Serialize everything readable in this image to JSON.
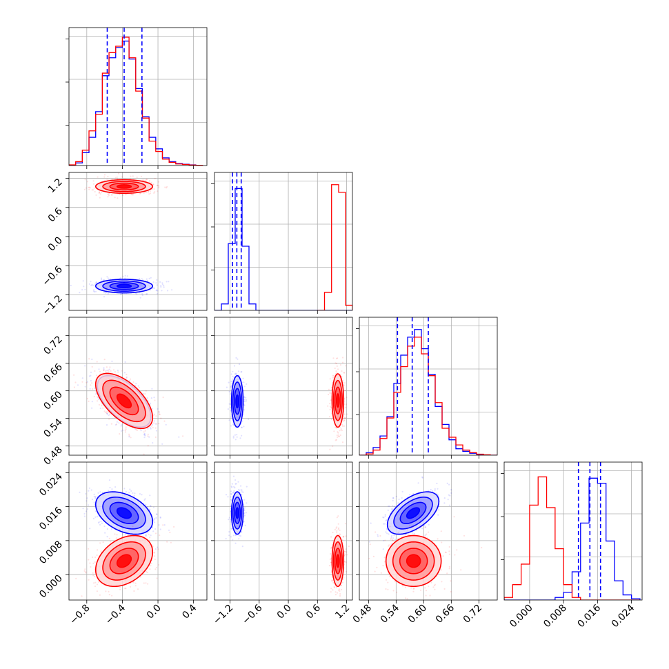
{
  "chart_data": {
    "type": "corner",
    "n_params": 4,
    "series": [
      {
        "name": "",
        "color": "#0000ff"
      },
      {
        "name": "",
        "color": "#ff0000"
      }
    ],
    "grid": true,
    "params": [
      {
        "range": [
          -1.0,
          0.55
        ],
        "ticks": [
          -0.8,
          -0.4,
          0.0,
          0.4
        ],
        "tick_labels": [
          "−0.8",
          "−0.4",
          "0.0",
          "0.4"
        ]
      },
      {
        "range": [
          -1.52,
          1.32
        ],
        "ticks": [
          -1.2,
          -0.6,
          0.0,
          0.6,
          1.2
        ],
        "tick_labels": [
          "−1.2",
          "−0.6",
          "0.0",
          "0.6",
          "1.2"
        ]
      },
      {
        "range": [
          0.46,
          0.76
        ],
        "ticks": [
          0.48,
          0.54,
          0.6,
          0.66,
          0.72
        ],
        "tick_labels": [
          "0.48",
          "0.54",
          "0.60",
          "0.66",
          "0.72"
        ]
      },
      {
        "range": [
          -0.006,
          0.0265
        ],
        "ticks": [
          0.0,
          0.008,
          0.016,
          0.024
        ],
        "tick_labels": [
          "0.000",
          "0.008",
          "0.016",
          "0.024"
        ]
      }
    ],
    "quantile_lines": [
      [
        -0.57,
        -0.38,
        -0.18
      ],
      [
        -1.15,
        -1.06,
        -0.97
      ],
      [
        0.543,
        0.575,
        0.61
      ],
      [
        0.0115,
        0.0142,
        0.0167
      ]
    ],
    "hist_1d": [
      {
        "bins": [
          -1.0,
          -0.925,
          -0.85,
          -0.775,
          -0.7,
          -0.625,
          -0.55,
          -0.475,
          -0.4,
          -0.325,
          -0.25,
          -0.175,
          -0.1,
          -0.025,
          0.05,
          0.125,
          0.2,
          0.275,
          0.35,
          0.425,
          0.5
        ],
        "blue": [
          0.002,
          0.02,
          0.1,
          0.22,
          0.42,
          0.7,
          0.84,
          0.92,
          0.97,
          0.83,
          0.6,
          0.38,
          0.22,
          0.13,
          0.06,
          0.03,
          0.015,
          0.01,
          0.005,
          0.002
        ],
        "red": [
          0.005,
          0.03,
          0.12,
          0.27,
          0.4,
          0.72,
          0.88,
          0.93,
          1.0,
          0.84,
          0.58,
          0.37,
          0.19,
          0.11,
          0.05,
          0.025,
          0.012,
          0.008,
          0.004,
          0.002
        ]
      },
      {
        "bins": [
          -1.52,
          -1.378,
          -1.236,
          -1.094,
          -0.952,
          -0.81,
          -0.668,
          -0.526,
          -0.384,
          -0.242,
          -0.1,
          0.042,
          0.184,
          0.326,
          0.468,
          0.61,
          0.752,
          0.894,
          1.036,
          1.178,
          1.32
        ],
        "blue": [
          0.0,
          0.05,
          0.52,
          0.95,
          0.5,
          0.05,
          0.0,
          0.0,
          0.0,
          0.0,
          0.0,
          0.0,
          0.0,
          0.0,
          0.0,
          0.0,
          0.0,
          0.0,
          0.0,
          0.0
        ],
        "red": [
          0.0,
          0.0,
          0.0,
          0.0,
          0.0,
          0.0,
          0.0,
          0.0,
          0.0,
          0.0,
          0.0,
          0.0,
          0.0,
          0.0,
          0.0,
          0.0,
          0.0,
          0.0,
          0.0,
          0.0
        ],
        "red_tail": {
          "bins": [
            0.6,
            0.745,
            0.89,
            1.036,
            1.178,
            1.32
          ],
          "values": [
            0.0,
            0.14,
            0.98,
            0.92,
            0.04
          ]
        }
      },
      {
        "bins": [
          0.46,
          0.475,
          0.49,
          0.505,
          0.52,
          0.535,
          0.55,
          0.565,
          0.58,
          0.595,
          0.61,
          0.625,
          0.64,
          0.655,
          0.67,
          0.685,
          0.7,
          0.715,
          0.73,
          0.745,
          0.76
        ],
        "blue": [
          0.0,
          0.02,
          0.06,
          0.15,
          0.3,
          0.56,
          0.78,
          0.92,
          0.98,
          0.83,
          0.63,
          0.38,
          0.24,
          0.12,
          0.05,
          0.03,
          0.015,
          0.005,
          0.0,
          0.0
        ],
        "red": [
          0.0,
          0.01,
          0.04,
          0.13,
          0.29,
          0.49,
          0.69,
          0.85,
          0.92,
          0.79,
          0.62,
          0.41,
          0.21,
          0.14,
          0.08,
          0.04,
          0.02,
          0.008,
          0.003,
          0.0
        ]
      },
      {
        "bins": [
          -0.006,
          -0.004,
          -0.002,
          0.0,
          0.002,
          0.004,
          0.006,
          0.008,
          0.01,
          0.012,
          0.014,
          0.016,
          0.018,
          0.02,
          0.022,
          0.024,
          0.026
        ],
        "blue": [
          0.0,
          0.0,
          0.0,
          0.0,
          0.0,
          0.0,
          0.02,
          0.06,
          0.22,
          0.6,
          0.95,
          0.91,
          0.46,
          0.15,
          0.04,
          0.01
        ],
        "red": [
          0.02,
          0.12,
          0.28,
          0.74,
          0.96,
          0.72,
          0.4,
          0.12,
          0.02,
          0.0,
          0.0,
          0.0,
          0.0,
          0.0,
          0.0,
          0.0
        ]
      }
    ],
    "posteriors_2d": [
      {
        "x": 0,
        "y": 1,
        "blue": {
          "mean": [
            -0.38,
            -1.02
          ],
          "sd": [
            0.16,
            0.07
          ],
          "rho": 0.0
        },
        "red": {
          "mean": [
            -0.38,
            1.03
          ],
          "sd": [
            0.16,
            0.07
          ],
          "rho": 0.0
        }
      },
      {
        "x": 0,
        "y": 2,
        "blue": {
          "mean": [
            -0.38,
            0.577
          ],
          "sd": [
            0.15,
            0.028
          ],
          "rho": -0.6
        },
        "red": {
          "mean": [
            -0.38,
            0.578
          ],
          "sd": [
            0.16,
            0.03
          ],
          "rho": -0.6
        }
      },
      {
        "x": 1,
        "y": 2,
        "blue": {
          "mean": [
            -1.05,
            0.577
          ],
          "sd": [
            0.06,
            0.028
          ],
          "rho": 0.0
        },
        "red": {
          "mean": [
            1.02,
            0.579
          ],
          "sd": [
            0.06,
            0.029
          ],
          "rho": 0.0
        }
      },
      {
        "x": 0,
        "y": 3,
        "blue": {
          "mean": [
            -0.38,
            0.0145
          ],
          "sd": [
            0.16,
            0.0025
          ],
          "rho": -0.4
        },
        "red": {
          "mean": [
            -0.38,
            0.0032
          ],
          "sd": [
            0.16,
            0.003
          ],
          "rho": 0.35
        }
      },
      {
        "x": 1,
        "y": 3,
        "blue": {
          "mean": [
            -1.05,
            0.0145
          ],
          "sd": [
            0.06,
            0.0025
          ],
          "rho": 0.0
        },
        "red": {
          "mean": [
            1.02,
            0.0032
          ],
          "sd": [
            0.06,
            0.003
          ],
          "rho": 0.0
        }
      },
      {
        "x": 2,
        "y": 3,
        "blue": {
          "mean": [
            0.577,
            0.0145
          ],
          "sd": [
            0.028,
            0.0025
          ],
          "rho": 0.55
        },
        "red": {
          "mean": [
            0.578,
            0.0032
          ],
          "sd": [
            0.03,
            0.003
          ],
          "rho": 0.0
        }
      }
    ],
    "contour_levels_sigma": [
      0.5,
      1.0,
      1.5,
      2.0
    ]
  }
}
